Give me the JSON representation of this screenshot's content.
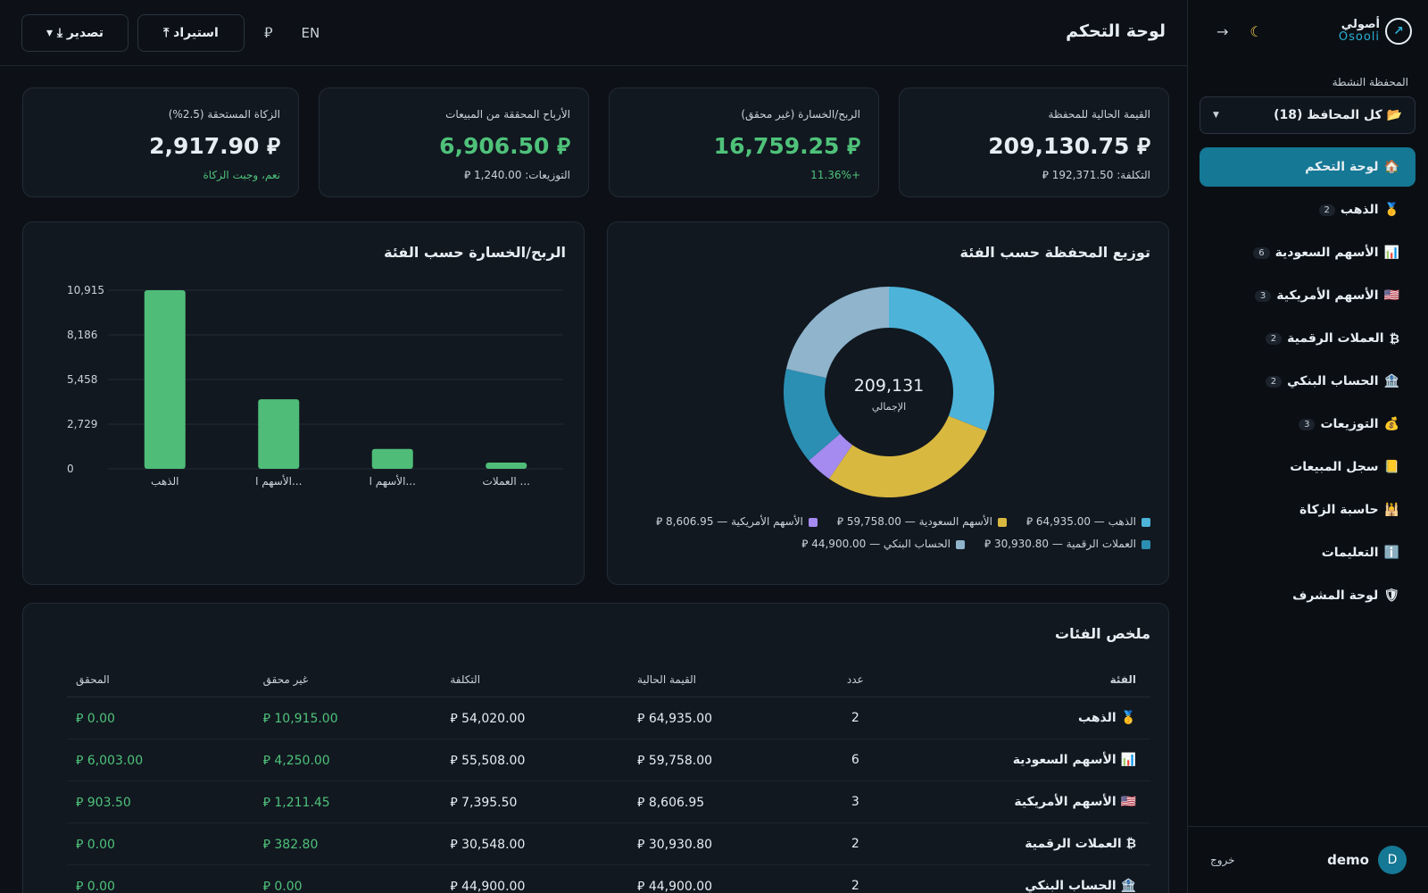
{
  "brand": {
    "name_ar": "أصولي",
    "name_en": "Osooli",
    "logo_glyph": "↗"
  },
  "sidebar": {
    "theme_icon": "☾",
    "collapse_icon": "→",
    "active_portfolio_label": "المحفظة النشطة",
    "portfolio_select": "📂 كل المحافظ (18)",
    "items": [
      {
        "icon": "🏠",
        "label": "لوحة التحكم",
        "badge": "",
        "active": true
      },
      {
        "icon": "🥇",
        "label": "الذهب",
        "badge": "2"
      },
      {
        "icon": "📊",
        "label": "الأسهم السعودية",
        "badge": "6"
      },
      {
        "icon": "🇺🇸",
        "label": "الأسهم الأمريكية",
        "badge": "3"
      },
      {
        "icon": "₿",
        "label": "العملات الرقمية",
        "badge": "2"
      },
      {
        "icon": "🏦",
        "label": "الحساب البنكي",
        "badge": "2"
      },
      {
        "icon": "💰",
        "label": "التوزيعات",
        "badge": "3"
      },
      {
        "icon": "📒",
        "label": "سجل المبيعات",
        "badge": ""
      },
      {
        "icon": "🕌",
        "label": "حاسبة الزكاة",
        "badge": ""
      },
      {
        "icon": "ℹ️",
        "label": "التعليمات",
        "badge": ""
      },
      {
        "icon": "🛡",
        "label": "لوحة المشرف",
        "badge": ""
      }
    ],
    "user": {
      "initial": "D",
      "name": "demo"
    },
    "logout": "خروج"
  },
  "header": {
    "title": "لوحة التحكم",
    "lang": "EN",
    "currency_icon": "⃁",
    "import_label": "⤒ استيراد",
    "export_label": "▾ ⤓ تصدير"
  },
  "stats": [
    {
      "label": "القيمة الحالية للمحفظة",
      "value": "209,130.75 ⃁",
      "sub": "التكلفة: 192,371.50 ⃁",
      "sub_green": false,
      "value_green": false
    },
    {
      "label": "الربح/الخسارة (غير محقق)",
      "value": "16,759.25 ⃁",
      "sub": "+11.36%",
      "sub_green": true,
      "value_green": true
    },
    {
      "label": "الأرباح المحققة من المبيعات",
      "value": "6,906.50 ⃁",
      "sub": "التوزيعات: 1,240.00 ⃁",
      "sub_green": false,
      "value_green": true
    },
    {
      "label": "الزكاة المستحقة (2.5%)",
      "value": "2,917.90 ⃁",
      "sub": "نعم، وجبت الزكاة",
      "sub_green": true,
      "value_green": false
    }
  ],
  "donut": {
    "title": "توزيع المحفظة حسب الفئة",
    "center_value": "209,131",
    "center_label": "الإجمالي",
    "legend": [
      {
        "text": "الذهب — 64,935.00 ⃁",
        "color": "#4db3d9"
      },
      {
        "text": "الأسهم السعودية — 59,758.00 ⃁",
        "color": "#d9b840"
      },
      {
        "text": "الأسهم الأمريكية — 8,606.95 ⃁",
        "color": "#a58bf0"
      },
      {
        "text": "العملات الرقمية — 30,930.80 ⃁",
        "color": "#2b8fb3"
      },
      {
        "text": "الحساب البنكي — 44,900.00 ⃁",
        "color": "#8fb4cc"
      }
    ]
  },
  "bar_title": "الربح/الخسارة حسب الفئة",
  "chart_data": {
    "type": "bar",
    "title": "الربح/الخسارة حسب الفئة",
    "categories": [
      "الذهب",
      "الأسهم ا...",
      "الأسهم ا...",
      "العملات ..."
    ],
    "values": [
      10915,
      4250,
      1211.45,
      382.8
    ],
    "yticks": [
      "0",
      "2,729",
      "5,458",
      "8,186",
      "10,915"
    ],
    "ylim": [
      0,
      10915
    ],
    "color": "#4fbd78"
  },
  "table": {
    "title": "ملخص الفئات",
    "headers": [
      "الفئة",
      "عدد",
      "القيمة الحالية",
      "التكلفة",
      "غير محقق",
      "المحقق"
    ],
    "rows": [
      {
        "name": "🥇 الذهب",
        "count": "2",
        "value": "⃁ 64,935.00",
        "cost": "⃁ 54,020.00",
        "unrealized": "⃁ 10,915.00",
        "realized": "⃁ 0.00"
      },
      {
        "name": "📊 الأسهم السعودية",
        "count": "6",
        "value": "⃁ 59,758.00",
        "cost": "⃁ 55,508.00",
        "unrealized": "⃁ 4,250.00",
        "realized": "⃁ 6,003.00"
      },
      {
        "name": "🇺🇸 الأسهم الأمريكية",
        "count": "3",
        "value": "⃁ 8,606.95",
        "cost": "⃁ 7,395.50",
        "unrealized": "⃁ 1,211.45",
        "realized": "⃁ 903.50"
      },
      {
        "name": "₿ العملات الرقمية",
        "count": "2",
        "value": "⃁ 30,930.80",
        "cost": "⃁ 30,548.00",
        "unrealized": "⃁ 382.80",
        "realized": "⃁ 0.00"
      },
      {
        "name": "🏦 الحساب البنكي",
        "count": "2",
        "value": "⃁ 44,900.00",
        "cost": "⃁ 44,900.00",
        "unrealized": "⃁ 0.00",
        "realized": "⃁ 0.00"
      }
    ]
  }
}
